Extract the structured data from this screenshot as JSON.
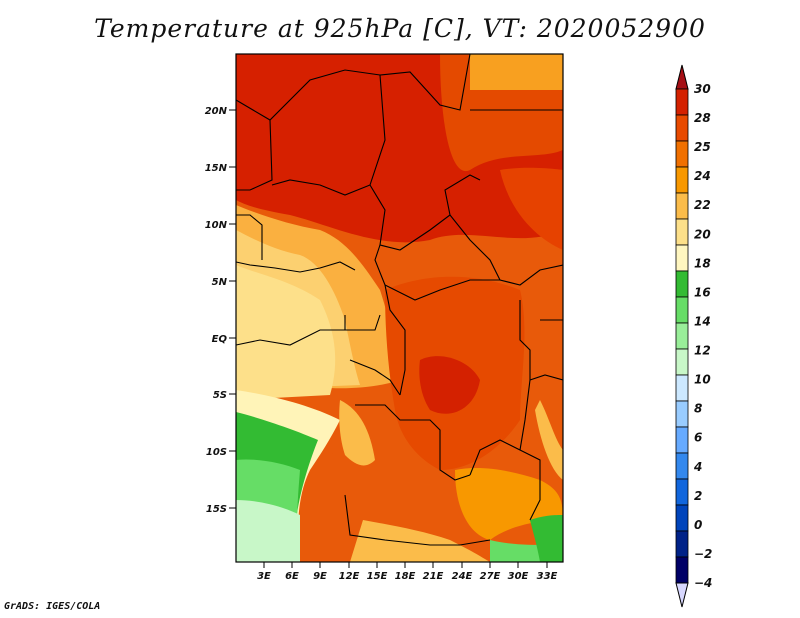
{
  "title": "Temperature at 925hPa [C], VT: 2020052900",
  "footer": "GrADS: IGES/COLA",
  "map": {
    "lat_labels": [
      "20N",
      "15N",
      "10N",
      "5N",
      "EQ",
      "5S",
      "10S",
      "15S"
    ],
    "lon_labels": [
      "3E",
      "6E",
      "9E",
      "12E",
      "15E",
      "18E",
      "21E",
      "24E",
      "27E",
      "30E",
      "33E"
    ]
  },
  "colorbar": {
    "levels": [
      "30",
      "28",
      "25",
      "24",
      "22",
      "20",
      "18",
      "16",
      "14",
      "12",
      "10",
      "8",
      "6",
      "4",
      "2",
      "0",
      "−2",
      "−4"
    ],
    "colors": [
      "#a50f15",
      "#d42100",
      "#e84a00",
      "#f07000",
      "#f89800",
      "#fbbc4a",
      "#fde08a",
      "#fff6c0",
      "#33bb33",
      "#66dd66",
      "#99ee99",
      "#c8f7c8",
      "#cce8ff",
      "#99ccff",
      "#66aaff",
      "#3388ee",
      "#1166dd",
      "#0044bb",
      "#002288",
      "#000066",
      "#d8d8ff"
    ]
  }
}
